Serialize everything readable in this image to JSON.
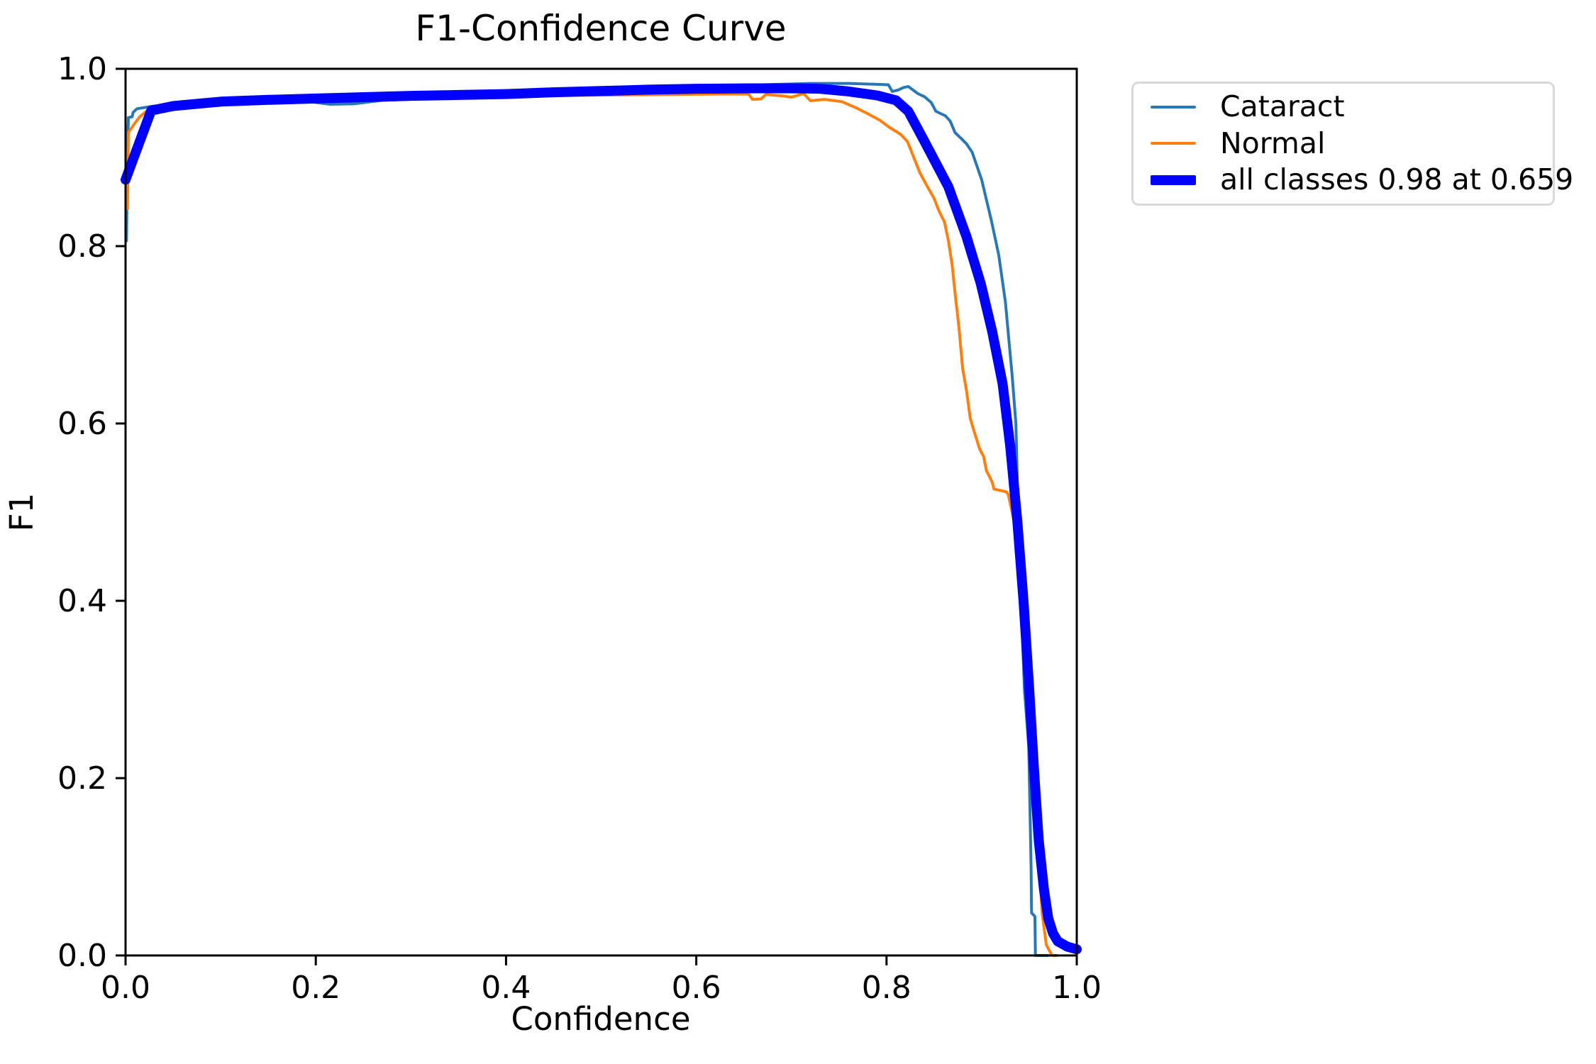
{
  "page": {
    "background": "#ffffff"
  },
  "chart_data": {
    "type": "line",
    "title": "F1-Confidence Curve",
    "xlabel": "Confidence",
    "ylabel": "F1",
    "xlim": [
      0.0,
      1.0
    ],
    "ylim": [
      0.0,
      1.0
    ],
    "grid": false,
    "xticks": {
      "values": [
        0.0,
        0.2,
        0.4,
        0.6,
        0.8,
        1.0
      ],
      "labels": [
        "0.0",
        "0.2",
        "0.4",
        "0.6",
        "0.8",
        "1.0"
      ]
    },
    "yticks": {
      "values": [
        0.0,
        0.2,
        0.4,
        0.6,
        0.8,
        1.0
      ],
      "labels": [
        "0.0",
        "0.2",
        "0.4",
        "0.6",
        "0.8",
        "1.0"
      ]
    },
    "axis_color": "#000000",
    "legend": {
      "position": "outside-upper-right",
      "border_color": "#d9d9d9",
      "items": [
        {
          "label": "Cataract",
          "color": "#2878b8",
          "linewidth": 4
        },
        {
          "label": "Normal",
          "color": "#ff7f0e",
          "linewidth": 4
        },
        {
          "label": "all classes 0.98 at 0.659",
          "color": "#0000ff",
          "linewidth": 14
        }
      ]
    },
    "best": {
      "f1": 0.98,
      "confidence": 0.659
    },
    "series": [
      {
        "name": "Cataract",
        "color": "#2878b8",
        "linewidth": 4,
        "points": [
          [
            0.001,
            0.806
          ],
          [
            0.002,
            0.9
          ],
          [
            0.003,
            0.945
          ],
          [
            0.007,
            0.946
          ],
          [
            0.008,
            0.951
          ],
          [
            0.012,
            0.955
          ],
          [
            0.018,
            0.956
          ],
          [
            0.03,
            0.958
          ],
          [
            0.06,
            0.96
          ],
          [
            0.1,
            0.962
          ],
          [
            0.15,
            0.963
          ],
          [
            0.19,
            0.9635
          ],
          [
            0.215,
            0.96
          ],
          [
            0.24,
            0.9605
          ],
          [
            0.27,
            0.9645
          ],
          [
            0.32,
            0.9665
          ],
          [
            0.37,
            0.9685
          ],
          [
            0.42,
            0.9705
          ],
          [
            0.47,
            0.973
          ],
          [
            0.52,
            0.9755
          ],
          [
            0.57,
            0.978
          ],
          [
            0.62,
            0.98
          ],
          [
            0.67,
            0.982
          ],
          [
            0.72,
            0.9835
          ],
          [
            0.76,
            0.9835
          ],
          [
            0.79,
            0.9825
          ],
          [
            0.802,
            0.982
          ],
          [
            0.806,
            0.9745
          ],
          [
            0.812,
            0.976
          ],
          [
            0.818,
            0.979
          ],
          [
            0.823,
            0.98
          ],
          [
            0.833,
            0.972
          ],
          [
            0.84,
            0.9685
          ],
          [
            0.847,
            0.962
          ],
          [
            0.852,
            0.952
          ],
          [
            0.862,
            0.947
          ],
          [
            0.867,
            0.941
          ],
          [
            0.872,
            0.928
          ],
          [
            0.877,
            0.923
          ],
          [
            0.884,
            0.9155
          ],
          [
            0.89,
            0.906
          ],
          [
            0.9,
            0.875
          ],
          [
            0.91,
            0.83
          ],
          [
            0.918,
            0.79
          ],
          [
            0.925,
            0.737
          ],
          [
            0.932,
            0.655
          ],
          [
            0.936,
            0.6
          ],
          [
            0.9385,
            0.49
          ],
          [
            0.9425,
            0.37
          ],
          [
            0.945,
            0.3
          ],
          [
            0.9495,
            0.235
          ],
          [
            0.952,
            0.1
          ],
          [
            0.9525,
            0.048
          ],
          [
            0.956,
            0.044
          ],
          [
            0.9565,
            0.0
          ],
          [
            0.97,
            0.0
          ]
        ]
      },
      {
        "name": "Normal",
        "color": "#ff7f0e",
        "linewidth": 4,
        "points": [
          [
            0.002,
            0.842
          ],
          [
            0.003,
            0.928
          ],
          [
            0.01,
            0.939
          ],
          [
            0.015,
            0.946
          ],
          [
            0.022,
            0.952
          ],
          [
            0.03,
            0.9555
          ],
          [
            0.06,
            0.958
          ],
          [
            0.1,
            0.96
          ],
          [
            0.15,
            0.9625
          ],
          [
            0.19,
            0.965
          ],
          [
            0.21,
            0.9685
          ],
          [
            0.235,
            0.9715
          ],
          [
            0.26,
            0.972
          ],
          [
            0.29,
            0.9715
          ],
          [
            0.33,
            0.97
          ],
          [
            0.37,
            0.9695
          ],
          [
            0.42,
            0.9695
          ],
          [
            0.47,
            0.97
          ],
          [
            0.52,
            0.9705
          ],
          [
            0.57,
            0.971
          ],
          [
            0.62,
            0.9715
          ],
          [
            0.655,
            0.9715
          ],
          [
            0.659,
            0.9655
          ],
          [
            0.668,
            0.966
          ],
          [
            0.673,
            0.971
          ],
          [
            0.69,
            0.9695
          ],
          [
            0.7,
            0.968
          ],
          [
            0.713,
            0.972
          ],
          [
            0.72,
            0.964
          ],
          [
            0.735,
            0.9655
          ],
          [
            0.753,
            0.963
          ],
          [
            0.768,
            0.956
          ],
          [
            0.78,
            0.9495
          ],
          [
            0.793,
            0.942
          ],
          [
            0.803,
            0.934
          ],
          [
            0.815,
            0.926
          ],
          [
            0.822,
            0.918
          ],
          [
            0.835,
            0.883
          ],
          [
            0.843,
            0.867
          ],
          [
            0.85,
            0.854
          ],
          [
            0.855,
            0.84
          ],
          [
            0.861,
            0.827
          ],
          [
            0.865,
            0.806
          ],
          [
            0.869,
            0.779
          ],
          [
            0.872,
            0.747
          ],
          [
            0.876,
            0.71
          ],
          [
            0.88,
            0.662
          ],
          [
            0.884,
            0.638
          ],
          [
            0.888,
            0.606
          ],
          [
            0.891,
            0.595
          ],
          [
            0.898,
            0.571
          ],
          [
            0.902,
            0.563
          ],
          [
            0.905,
            0.547
          ],
          [
            0.911,
            0.534
          ],
          [
            0.913,
            0.526
          ],
          [
            0.926,
            0.523
          ],
          [
            0.928,
            0.52
          ],
          [
            0.938,
            0.47
          ],
          [
            0.945,
            0.42
          ],
          [
            0.948,
            0.396
          ],
          [
            0.95,
            0.35
          ],
          [
            0.955,
            0.22
          ],
          [
            0.958,
            0.15
          ],
          [
            0.961,
            0.094
          ],
          [
            0.9635,
            0.048
          ],
          [
            0.968,
            0.012
          ],
          [
            0.974,
            0.0
          ],
          [
            0.979,
            0.0
          ]
        ]
      },
      {
        "name": "all classes",
        "color": "#0000ff",
        "linewidth": 14,
        "points": [
          [
            0.0,
            0.875
          ],
          [
            0.027,
            0.953
          ],
          [
            0.05,
            0.958
          ],
          [
            0.1,
            0.963
          ],
          [
            0.15,
            0.965
          ],
          [
            0.2,
            0.9665
          ],
          [
            0.25,
            0.968
          ],
          [
            0.3,
            0.9695
          ],
          [
            0.35,
            0.9705
          ],
          [
            0.4,
            0.9715
          ],
          [
            0.45,
            0.9735
          ],
          [
            0.5,
            0.975
          ],
          [
            0.55,
            0.9765
          ],
          [
            0.6,
            0.9775
          ],
          [
            0.659,
            0.978
          ],
          [
            0.7,
            0.978
          ],
          [
            0.73,
            0.9775
          ],
          [
            0.76,
            0.9745
          ],
          [
            0.79,
            0.97
          ],
          [
            0.81,
            0.9645
          ],
          [
            0.823,
            0.952
          ],
          [
            0.84,
            0.918
          ],
          [
            0.865,
            0.867
          ],
          [
            0.884,
            0.811
          ],
          [
            0.899,
            0.758
          ],
          [
            0.911,
            0.704
          ],
          [
            0.922,
            0.645
          ],
          [
            0.93,
            0.575
          ],
          [
            0.9375,
            0.49
          ],
          [
            0.944,
            0.4
          ],
          [
            0.95,
            0.3
          ],
          [
            0.955,
            0.21
          ],
          [
            0.96,
            0.13
          ],
          [
            0.9655,
            0.075
          ],
          [
            0.97,
            0.042
          ],
          [
            0.975,
            0.025
          ],
          [
            0.98,
            0.016
          ],
          [
            0.99,
            0.01
          ],
          [
            1.0,
            0.007
          ]
        ]
      }
    ]
  }
}
